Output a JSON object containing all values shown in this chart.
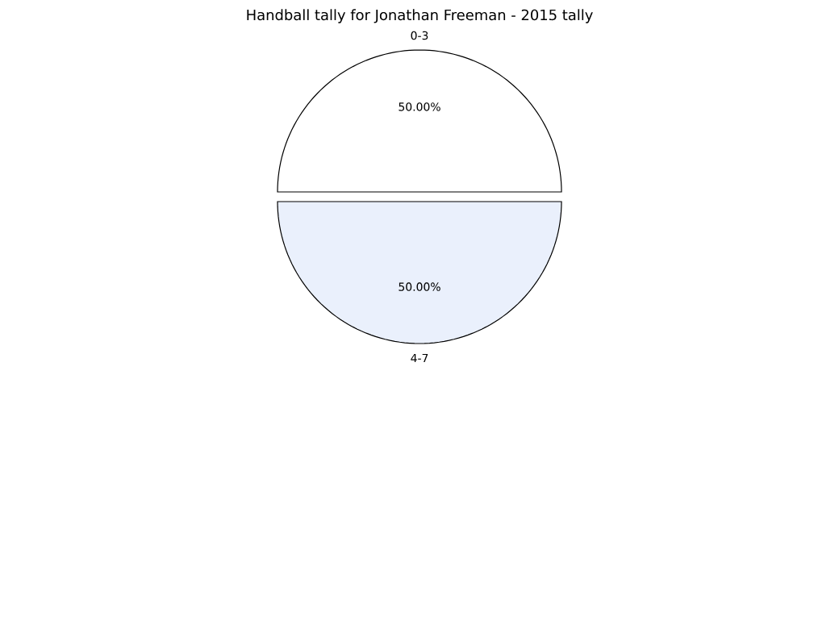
{
  "chart_data": {
    "type": "pie",
    "title": "Handball tally for Jonathan Freeman - 2015 tally",
    "categories": [
      "0-3",
      "4-7"
    ],
    "values": [
      50,
      50
    ],
    "value_labels": [
      "50.00%",
      "50.00%"
    ],
    "colors": [
      "#ffffff",
      "#eaf0fc"
    ]
  }
}
